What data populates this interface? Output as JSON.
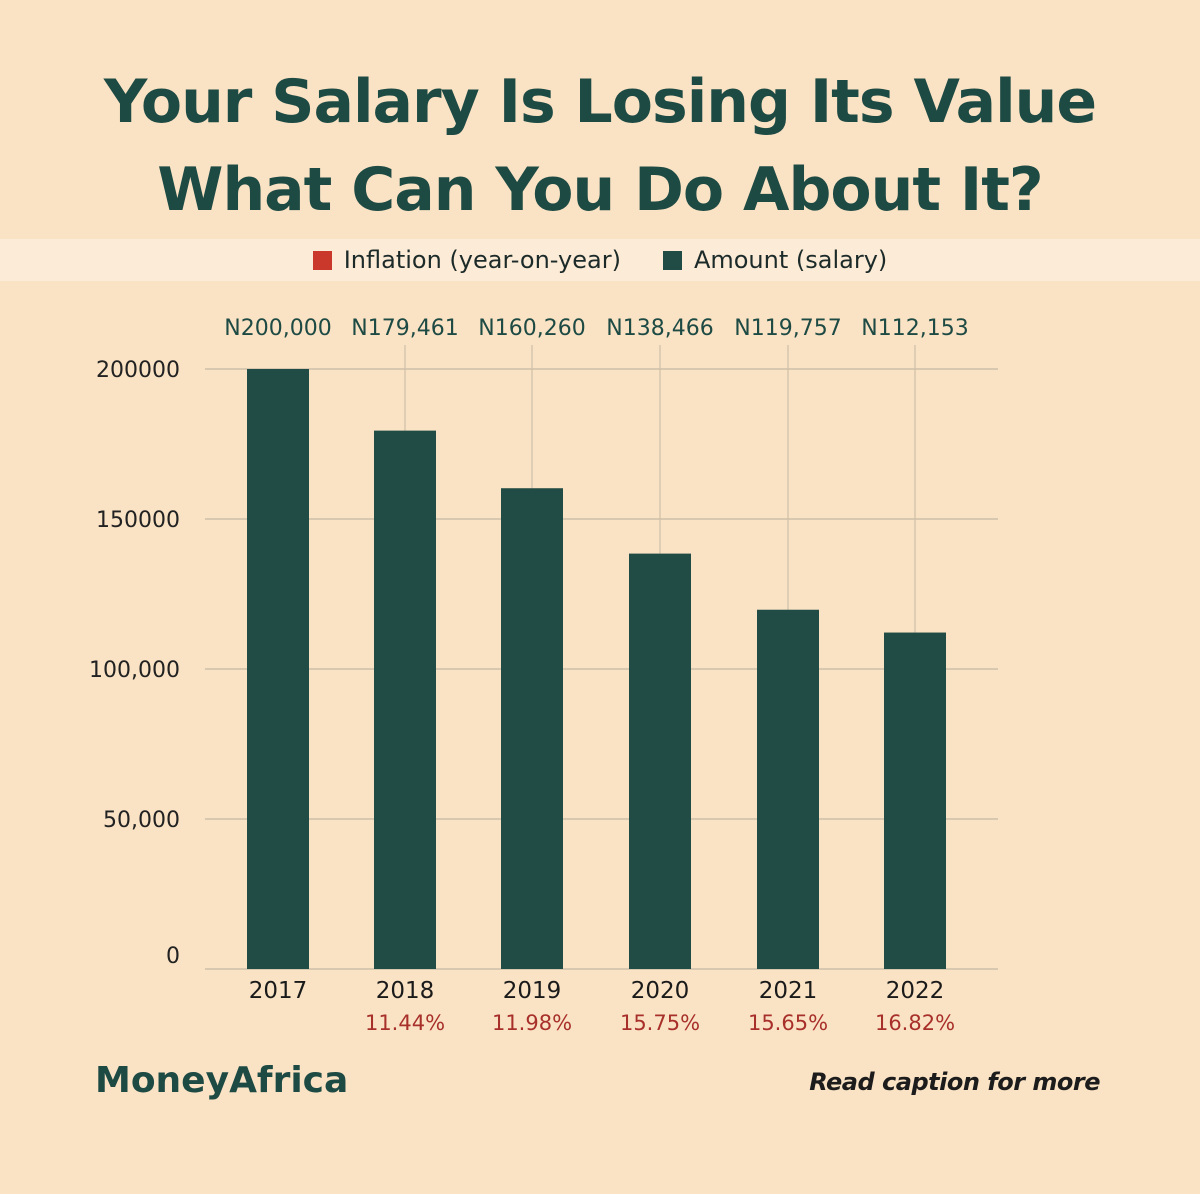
{
  "header": {
    "title_line1": "Your Salary Is Losing Its Value",
    "title_line2": "What Can You Do About It?"
  },
  "legend": [
    {
      "label": "Inflation (year-on-year)",
      "color": "#c9382a"
    },
    {
      "label": "Amount (salary)",
      "color": "#214c45"
    }
  ],
  "chart_data": {
    "type": "bar",
    "categories": [
      "2017",
      "2018",
      "2019",
      "2020",
      "2021",
      "2022"
    ],
    "values": [
      200000,
      179461,
      160260,
      138466,
      119757,
      112153
    ],
    "value_labels": [
      "N200,000",
      "N179,461",
      "N160,260",
      "N138,466",
      "N119,757",
      "N112,153"
    ],
    "inflation_labels": [
      "",
      "11.44%",
      "11.98%",
      "15.75%",
      "15.65%",
      "16.82%"
    ],
    "yticks": [
      0,
      50000,
      100000,
      150000,
      200000
    ],
    "ytick_labels": [
      "0",
      "50,000",
      "100,000",
      "150000",
      "200000"
    ],
    "ylim": [
      0,
      200000
    ],
    "grid": true,
    "legend_position": "top-center",
    "bar_color": "#214c45",
    "inflation_color": "#a8302a"
  },
  "footer": {
    "brand": "MoneyAfrica",
    "caption": "Read caption for more"
  }
}
